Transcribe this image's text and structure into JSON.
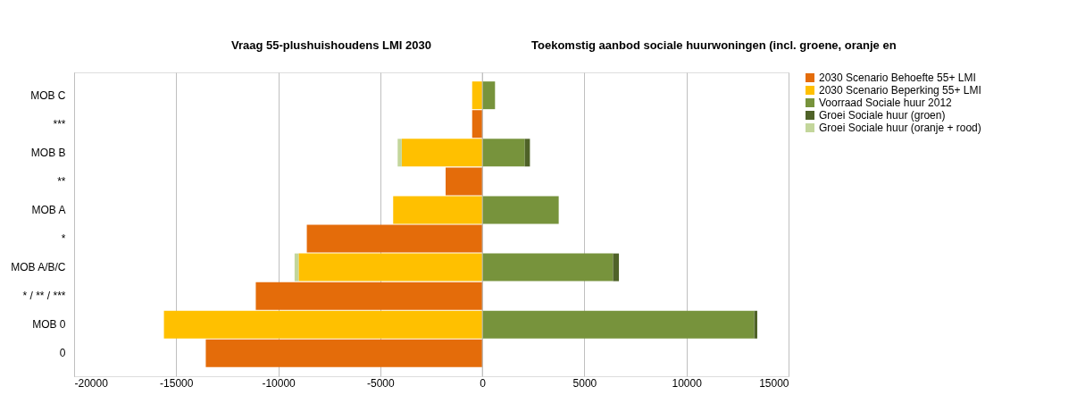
{
  "chart_data": {
    "type": "bar",
    "orientation": "horizontal",
    "stacked": true,
    "annotations": [
      "Vraag  55-plushuishoudens LMI 2030",
      "Toekomstig aanbod sociale huurwoningen (incl. groene, oranje en"
    ],
    "categories": [
      "MOB C",
      "***",
      "MOB B",
      "**",
      "MOB A",
      "*",
      "MOB A/B/C",
      "* / ** / ***",
      "MOB 0",
      "0"
    ],
    "series": [
      {
        "name": "2030 Scenario Behoefte 55+ LMI",
        "color": "#e46c0a",
        "values": [
          null,
          -500,
          null,
          -1800,
          null,
          -8600,
          null,
          -11100,
          null,
          -13550
        ]
      },
      {
        "name": "2030 Scenario Beperking 55+ LMI",
        "color": "#ffc000",
        "values": [
          -500,
          null,
          -3950,
          null,
          -4370,
          null,
          -9000,
          null,
          -15600,
          null
        ]
      },
      {
        "name": "Voorraad Sociale huur 2012",
        "color": "#77933c",
        "values": [
          620,
          null,
          2080,
          null,
          3740,
          null,
          6400,
          null,
          13320,
          null
        ]
      },
      {
        "name": "Groei Sociale huur (groen)",
        "color": "#4f6228",
        "values": [
          null,
          null,
          250,
          null,
          null,
          null,
          290,
          null,
          150,
          null
        ]
      },
      {
        "name": "Groei Sociale huur (oranje + rood)",
        "color": "#c3d69b",
        "values": [
          null,
          null,
          -200,
          null,
          null,
          null,
          -200,
          null,
          null,
          null
        ]
      }
    ],
    "xlim": [
      -20000,
      15000
    ],
    "xticks": [
      -20000,
      -15000,
      -10000,
      -5000,
      0,
      5000,
      10000,
      15000
    ],
    "grid": "x",
    "legend": "right"
  }
}
